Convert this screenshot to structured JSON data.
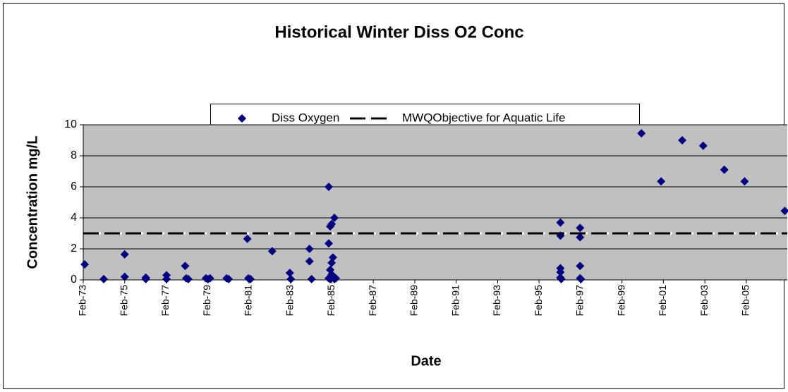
{
  "chart_data": {
    "type": "scatter",
    "title": "Historical Winter Diss O2 Conc",
    "x_label": "Date",
    "y_label": "Concentration mg/L",
    "xlim": [
      1973.08,
      2007.06
    ],
    "ylim": [
      0,
      10
    ],
    "yticks": [
      0,
      2,
      4,
      6,
      8,
      10
    ],
    "xticks": [
      {
        "value": 1973.08,
        "label": "Feb-73"
      },
      {
        "value": 1975.08,
        "label": "Feb-75"
      },
      {
        "value": 1977.08,
        "label": "Feb-77"
      },
      {
        "value": 1979.08,
        "label": "Feb-79"
      },
      {
        "value": 1981.08,
        "label": "Feb-81"
      },
      {
        "value": 1983.08,
        "label": "Feb-83"
      },
      {
        "value": 1985.08,
        "label": "Feb-85"
      },
      {
        "value": 1987.08,
        "label": "Feb-87"
      },
      {
        "value": 1989.08,
        "label": "Feb-89"
      },
      {
        "value": 1991.08,
        "label": "Feb-91"
      },
      {
        "value": 1993.08,
        "label": "Feb-93"
      },
      {
        "value": 1995.08,
        "label": "Feb-95"
      },
      {
        "value": 1997.08,
        "label": "Feb-97"
      },
      {
        "value": 1999.08,
        "label": "Feb-99"
      },
      {
        "value": 2001.08,
        "label": "Feb-01"
      },
      {
        "value": 2003.08,
        "label": "Feb-03"
      },
      {
        "value": 2005.08,
        "label": "Feb-05"
      }
    ],
    "grid": true,
    "legend": "top",
    "series": [
      {
        "name": "Diss Oxygen",
        "type": "scatter",
        "color": "#000080",
        "x": [
          1973.15,
          1974.07,
          1975.08,
          1975.08,
          1976.1,
          1976.1,
          1977.1,
          1977.1,
          1978.0,
          1978.05,
          1978.15,
          1979.0,
          1979.1,
          1979.2,
          1980.0,
          1980.1,
          1981.0,
          1981.05,
          1981.15,
          1982.2,
          1983.05,
          1983.1,
          1984.0,
          1984.0,
          1984.1,
          1984.93,
          1984.93,
          1985.0,
          1985.07,
          1985.2,
          1985.13,
          1985.07,
          1985.0,
          1985.07,
          1985.13,
          1984.93,
          1985.2,
          1985.0,
          1985.27,
          1996.11,
          1996.11,
          1996.11,
          1996.11,
          1996.11,
          1996.15,
          1997.06,
          1997.06,
          1997.06,
          1997.06,
          1997.1,
          2000.02,
          2000.97,
          2001.99,
          2003.0,
          2004.02,
          2005.0,
          2006.94
        ],
        "values": [
          1.0,
          0.05,
          1.65,
          0.2,
          0.15,
          0.05,
          0.3,
          0.05,
          0.9,
          0.1,
          0.05,
          0.1,
          0.05,
          0.1,
          0.1,
          0.05,
          2.65,
          0.1,
          0.05,
          1.85,
          0.45,
          0.05,
          2.0,
          1.2,
          0.05,
          6.0,
          2.35,
          3.45,
          3.6,
          4.0,
          1.45,
          1.1,
          0.65,
          0.35,
          0.2,
          0.1,
          0.05,
          0.05,
          0.1,
          3.7,
          2.85,
          0.75,
          0.5,
          0.15,
          0.05,
          3.35,
          2.75,
          0.9,
          0.1,
          0.05,
          9.45,
          6.35,
          9.0,
          8.65,
          7.1,
          6.35,
          4.45
        ]
      },
      {
        "name": "MWQObjective for Aquatic Life",
        "type": "line",
        "color": "#000000",
        "x": [
          1973.08,
          2007.06
        ],
        "values": [
          3,
          3
        ]
      }
    ]
  }
}
